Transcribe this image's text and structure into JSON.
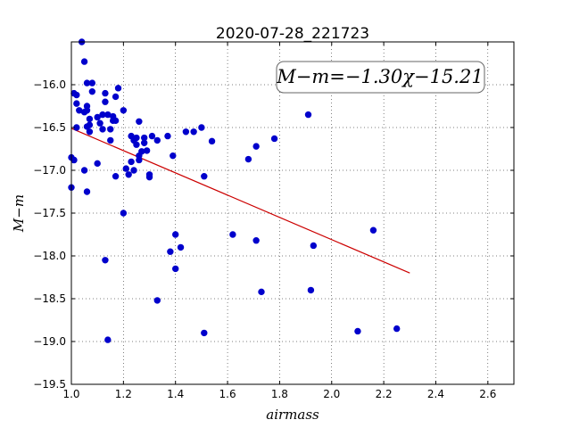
{
  "chart_data": {
    "type": "scatter",
    "title": "2020-07-28_221723",
    "xlabel": "airmass",
    "ylabel": "M−m",
    "xlim": [
      1.0,
      2.7
    ],
    "ylim": [
      -19.5,
      -15.5
    ],
    "y_inverted": true,
    "grid": true,
    "x_ticks": [
      1.0,
      1.2,
      1.4,
      1.6,
      1.8,
      2.0,
      2.2,
      2.4,
      2.6
    ],
    "x_tick_labels": [
      "1.0",
      "1.2",
      "1.4",
      "1.6",
      "1.8",
      "2.0",
      "2.2",
      "2.4",
      "2.6"
    ],
    "y_ticks": [
      -16.0,
      -16.5,
      -17.0,
      -17.5,
      -18.0,
      -18.5,
      -19.0,
      -19.5
    ],
    "y_tick_labels": [
      "−16.0",
      "−16.5",
      "−17.0",
      "−17.5",
      "−18.0",
      "−18.5",
      "−19.0",
      "−19.5"
    ],
    "annotation": "M−m=−1.30χ−15.21",
    "series": [
      {
        "marker": "circle",
        "color": "#0000cc",
        "x": [
          1.0,
          1.01,
          1.02,
          1.02,
          1.03,
          1.04,
          1.05,
          1.05,
          1.06,
          1.06,
          1.06,
          1.06,
          1.07,
          1.07,
          1.08,
          1.08,
          1.1,
          1.11,
          1.12,
          1.12,
          1.13,
          1.13,
          1.14,
          1.15,
          1.16,
          1.16,
          1.17,
          1.17,
          1.18,
          1.2,
          1.23,
          1.24,
          1.25,
          1.25,
          1.26,
          1.26,
          1.27,
          1.28,
          1.28,
          1.29,
          1.31,
          1.33,
          1.37,
          1.39,
          1.44,
          1.47,
          1.5,
          1.54,
          1.68,
          1.71,
          1.78,
          1.91,
          1.01,
          1.02,
          1.05,
          1.06,
          1.07,
          1.1,
          1.15,
          1.17,
          1.21,
          1.22,
          1.23,
          1.24,
          1.26,
          1.3,
          1.3,
          1.51,
          1.2,
          1.4,
          1.42,
          1.38,
          1.4,
          1.62,
          1.71,
          1.93,
          2.16,
          1.13,
          1.33,
          1.73,
          1.92,
          1.14,
          1.51,
          2.1,
          2.25,
          1.0,
          1.01
        ],
        "y": [
          -16.85,
          -16.1,
          -16.12,
          -16.22,
          -16.3,
          -15.45,
          -15.73,
          -16.32,
          -16.25,
          -16.3,
          -16.49,
          -15.98,
          -16.4,
          -16.47,
          -15.98,
          -16.08,
          -16.38,
          -16.45,
          -16.52,
          -16.35,
          -16.1,
          -16.2,
          -16.35,
          -16.52,
          -16.37,
          -16.42,
          -16.42,
          -16.14,
          -16.04,
          -16.3,
          -16.6,
          -16.65,
          -16.62,
          -16.7,
          -16.43,
          -16.83,
          -16.78,
          -16.62,
          -16.68,
          -16.77,
          -16.6,
          -16.65,
          -16.6,
          -16.83,
          -16.55,
          -16.55,
          -16.5,
          -16.66,
          -16.87,
          -16.72,
          -16.63,
          -16.35,
          -16.88,
          -16.5,
          -17.0,
          -17.25,
          -16.55,
          -16.92,
          -16.65,
          -17.07,
          -16.98,
          -17.05,
          -16.9,
          -17.0,
          -16.88,
          -17.05,
          -17.08,
          -17.07,
          -17.5,
          -17.75,
          -17.9,
          -17.95,
          -18.15,
          -17.75,
          -17.82,
          -17.88,
          -17.7,
          -18.05,
          -18.52,
          -18.42,
          -18.4,
          -18.98,
          -18.9,
          -18.88,
          -18.85,
          -17.2,
          -16.88
        ]
      }
    ],
    "fit_line": {
      "color": "#cc0000",
      "x": [
        1.0,
        2.3
      ],
      "y": [
        -16.51,
        -18.2
      ]
    }
  }
}
